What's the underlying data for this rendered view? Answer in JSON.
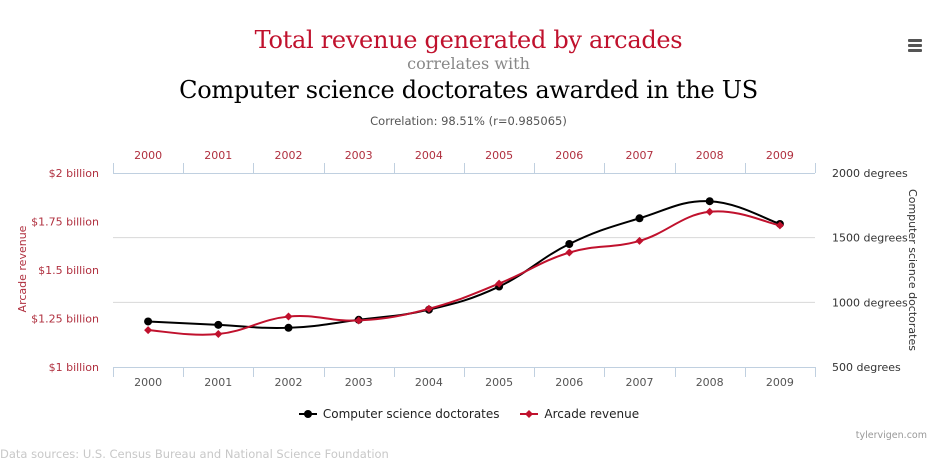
{
  "header": {
    "title": "Total revenue generated by arcades",
    "connector": "correlates with",
    "subtitle": "Computer science doctorates awarded in the US",
    "correlation": "Correlation: 98.51% (r=0.985065)"
  },
  "menu": {
    "icon": "hamburger-menu-icon"
  },
  "colors": {
    "title": "#c0112d",
    "arcade": "#c0112d",
    "doctorates": "#000000",
    "left_axis_text": "#b0303f",
    "gridline": "#d8d8d8",
    "axis_line": "#c0d0e0"
  },
  "chart_data": {
    "type": "line",
    "title": "Total revenue generated by arcades correlates with Computer science doctorates awarded in the US",
    "categories": [
      "2000",
      "2001",
      "2002",
      "2003",
      "2004",
      "2005",
      "2006",
      "2007",
      "2008",
      "2009"
    ],
    "top_axis_labels": [
      "2000",
      "2001",
      "2002",
      "2003",
      "2004",
      "2005",
      "2006",
      "2007",
      "2008",
      "2009"
    ],
    "series": [
      {
        "name": "Computer science doctorates",
        "axis": "right",
        "marker": "circle",
        "color": "#000000",
        "values": [
          852,
          826,
          803,
          865,
          943,
          1122,
          1451,
          1650,
          1782,
          1606
        ]
      },
      {
        "name": "Arcade revenue",
        "axis": "left",
        "marker": "diamond",
        "color": "#c0112d",
        "values": [
          1.19,
          1.17,
          1.26,
          1.24,
          1.3,
          1.43,
          1.59,
          1.65,
          1.8,
          1.73
        ]
      }
    ],
    "left_axis": {
      "title": "Arcade revenue",
      "range": [
        1,
        2
      ],
      "ticks": [
        1,
        1.25,
        1.5,
        1.75,
        2
      ],
      "tick_labels": [
        "$1 billion",
        "$1.25 billion",
        "$1.5 billion",
        "$1.75 billion",
        "$2 billion"
      ]
    },
    "right_axis": {
      "title": "Computer science doctorates",
      "range": [
        500,
        2000
      ],
      "ticks": [
        500,
        1000,
        1500,
        2000
      ],
      "tick_labels": [
        "500 degrees",
        "1000 degrees",
        "1500 degrees",
        "2000 degrees"
      ],
      "gridlines": [
        1000,
        1500
      ]
    },
    "legend": [
      "Computer science doctorates",
      "Arcade revenue"
    ],
    "legend_position": "bottom-center"
  },
  "footer": {
    "credit": "tylervigen.com",
    "sources": "Data sources: U.S. Census Bureau and National Science Foundation"
  }
}
